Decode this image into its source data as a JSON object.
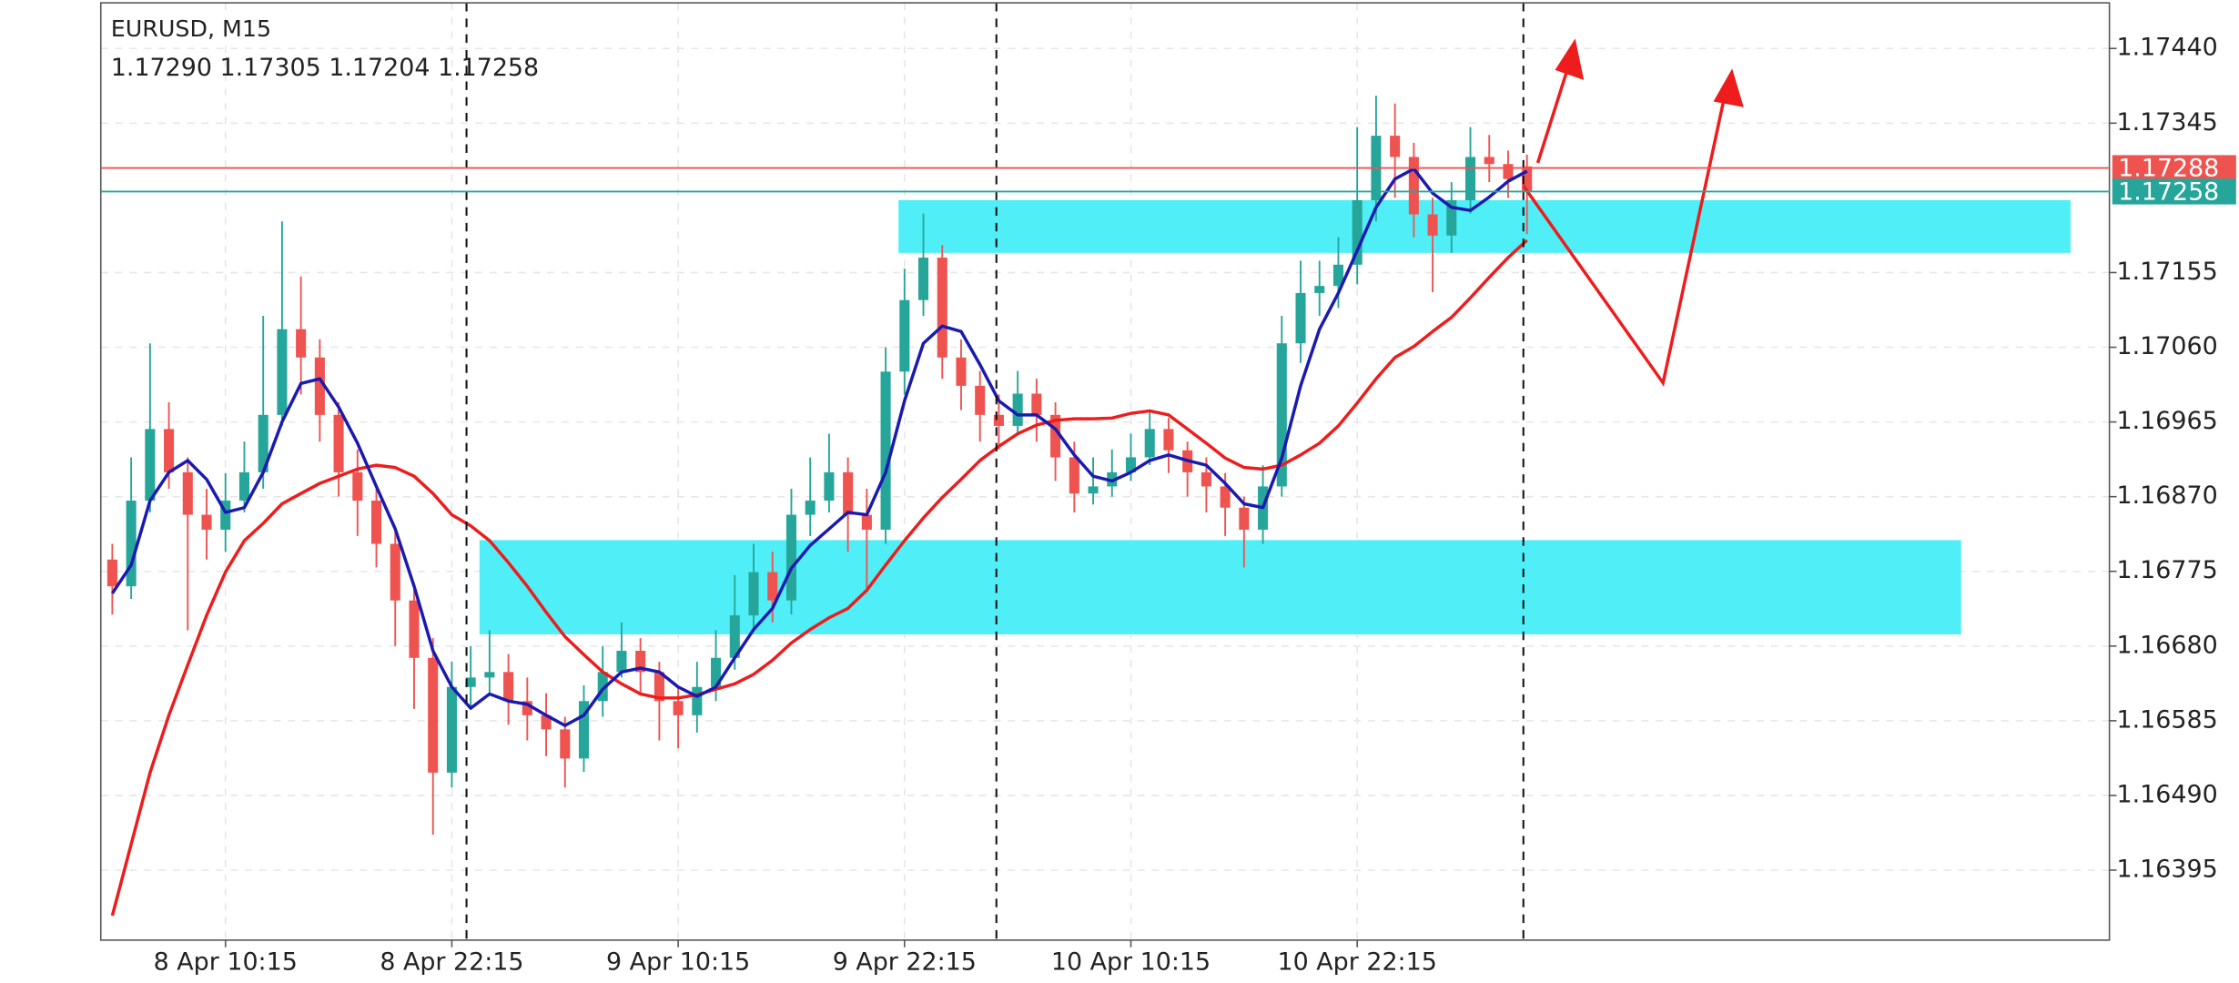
{
  "chart_data": {
    "type": "candlestick",
    "title": "EURUSD, M15",
    "subtitle": "1.17290 1.17305 1.17204 1.17258",
    "categories": [
      null,
      null,
      null,
      null,
      null,
      null,
      "8 Apr 10:15",
      null,
      null,
      null,
      null,
      null,
      null,
      null,
      null,
      null,
      null,
      null,
      "8 Apr 22:15",
      null,
      null,
      null,
      null,
      null,
      null,
      null,
      null,
      null,
      null,
      null,
      "9 Apr 10:15",
      null,
      null,
      null,
      null,
      null,
      null,
      null,
      null,
      null,
      null,
      null,
      "9 Apr 22:15",
      null,
      null,
      null,
      null,
      null,
      null,
      null,
      null,
      null,
      null,
      null,
      "10 Apr 10:15",
      null,
      null,
      null,
      null,
      null,
      null,
      null,
      null,
      null,
      null,
      null,
      "10 Apr 22:15",
      null,
      null,
      null,
      null,
      null,
      null,
      null,
      null,
      null
    ],
    "open": [
      1.1679,
      1.16756,
      1.16865,
      1.16956,
      1.16901,
      1.16847,
      1.16828,
      1.16865,
      1.16901,
      1.16974,
      1.17083,
      1.17047,
      1.16974,
      1.16901,
      1.16865,
      1.1681,
      1.16738,
      1.16665,
      1.16519,
      1.16628,
      1.1664,
      1.16647,
      1.1661,
      1.16592,
      1.16574,
      1.16537,
      1.1661,
      1.16647,
      1.16674,
      1.16647,
      1.1661,
      1.16592,
      1.16628,
      1.16665,
      1.16719,
      1.16774,
      1.16738,
      1.16847,
      1.16865,
      1.16901,
      1.16847,
      1.16828,
      1.17029,
      1.1712,
      1.17174,
      1.17047,
      1.17011,
      1.16974,
      1.1696,
      1.17001,
      1.16974,
      1.1692,
      1.16874,
      1.16883,
      1.16901,
      1.1692,
      1.16956,
      1.16929,
      1.16901,
      1.16883,
      1.16856,
      1.16828,
      1.16883,
      1.17065,
      1.17129,
      1.17138,
      1.17165,
      1.17247,
      1.17329,
      1.17302,
      1.17229,
      1.17202,
      1.17247,
      1.17302,
      1.17293,
      1.1729
    ],
    "high": [
      1.1681,
      1.1692,
      1.17065,
      1.1699,
      1.1692,
      1.1688,
      1.169,
      1.1694,
      1.171,
      1.1722,
      1.1715,
      1.1707,
      1.1699,
      1.1693,
      1.1688,
      1.1683,
      1.1676,
      1.1669,
      1.1666,
      1.1668,
      1.167,
      1.1667,
      1.1664,
      1.1662,
      1.1659,
      1.1663,
      1.1668,
      1.1671,
      1.1669,
      1.1666,
      1.1663,
      1.1666,
      1.167,
      1.1677,
      1.1681,
      1.168,
      1.1688,
      1.1692,
      1.1695,
      1.1692,
      1.1688,
      1.1706,
      1.1716,
      1.1723,
      1.1719,
      1.1707,
      1.1703,
      1.17,
      1.1703,
      1.1702,
      1.1699,
      1.1694,
      1.1692,
      1.1693,
      1.1695,
      1.1698,
      1.1697,
      1.1694,
      1.1692,
      1.169,
      1.1687,
      1.1691,
      1.171,
      1.1717,
      1.1717,
      1.172,
      1.1734,
      1.1738,
      1.1737,
      1.1732,
      1.1725,
      1.1727,
      1.1734,
      1.1733,
      1.1731,
      1.17305
    ],
    "low": [
      1.1672,
      1.1674,
      1.1685,
      1.1688,
      1.167,
      1.1679,
      1.168,
      1.1685,
      1.1688,
      1.1696,
      1.17,
      1.1694,
      1.1687,
      1.1682,
      1.1678,
      1.1668,
      1.166,
      1.1644,
      1.165,
      1.166,
      1.1662,
      1.1658,
      1.1656,
      1.1654,
      1.165,
      1.1652,
      1.1659,
      1.1664,
      1.1662,
      1.1656,
      1.1655,
      1.1657,
      1.1661,
      1.1665,
      1.167,
      1.1671,
      1.1672,
      1.1682,
      1.1685,
      1.168,
      1.1675,
      1.1681,
      1.17,
      1.171,
      1.1702,
      1.1698,
      1.1694,
      1.1693,
      1.1695,
      1.1694,
      1.1689,
      1.1685,
      1.1686,
      1.1687,
      1.1689,
      1.1691,
      1.169,
      1.1687,
      1.1685,
      1.1682,
      1.1678,
      1.1681,
      1.1687,
      1.1704,
      1.171,
      1.1711,
      1.1714,
      1.1722,
      1.1725,
      1.172,
      1.1713,
      1.1718,
      1.1723,
      1.1727,
      1.1725,
      1.17204
    ],
    "close": [
      1.16756,
      1.16865,
      1.16956,
      1.16901,
      1.16847,
      1.16828,
      1.16865,
      1.16901,
      1.16974,
      1.17083,
      1.17047,
      1.16974,
      1.16901,
      1.16865,
      1.1681,
      1.16738,
      1.16665,
      1.16519,
      1.16628,
      1.1664,
      1.16647,
      1.1661,
      1.16592,
      1.16574,
      1.16537,
      1.1661,
      1.16647,
      1.16674,
      1.16647,
      1.1661,
      1.16592,
      1.16628,
      1.16665,
      1.16719,
      1.16774,
      1.16738,
      1.16847,
      1.16865,
      1.16901,
      1.16847,
      1.16828,
      1.17029,
      1.1712,
      1.17174,
      1.17047,
      1.17011,
      1.16974,
      1.1696,
      1.17001,
      1.16974,
      1.1692,
      1.16874,
      1.16883,
      1.16901,
      1.1692,
      1.16956,
      1.16929,
      1.16901,
      1.16883,
      1.16856,
      1.16828,
      1.16883,
      1.17065,
      1.17129,
      1.17138,
      1.17165,
      1.17247,
      1.17329,
      1.17302,
      1.17229,
      1.17202,
      1.17247,
      1.17302,
      1.17293,
      1.17274,
      1.17258
    ],
    "up_color": "#26a69a",
    "down_color": "#ef5350",
    "series": [
      {
        "color": "#ee1c1c",
        "values": [
          1.16337,
          1.16428,
          1.16519,
          1.16592,
          1.16656,
          1.16719,
          1.16774,
          1.16814,
          1.16836,
          1.16861,
          1.16874,
          1.16887,
          1.16896,
          1.16905,
          1.1691,
          1.16907,
          1.16896,
          1.16874,
          1.16847,
          1.16833,
          1.16814,
          1.16786,
          1.16756,
          1.16723,
          1.16692,
          1.16669,
          1.16647,
          1.16632,
          1.16619,
          1.16614,
          1.16614,
          1.16618,
          1.16625,
          1.16632,
          1.16644,
          1.16662,
          1.16684,
          1.16701,
          1.16716,
          1.16728,
          1.16751,
          1.16783,
          1.16814,
          1.16843,
          1.16869,
          1.16892,
          1.16916,
          1.16934,
          1.1695,
          1.16961,
          1.16967,
          1.16969,
          1.16969,
          1.1697,
          1.16976,
          1.16979,
          1.16974,
          1.16956,
          1.16938,
          1.16919,
          1.16907,
          1.16905,
          1.1691,
          1.16923,
          1.16938,
          1.1696,
          1.16989,
          1.1702,
          1.17047,
          1.17061,
          1.1708,
          1.17098,
          1.17123,
          1.17149,
          1.17174,
          1.17196
        ]
      },
      {
        "color": "#1a1ab0",
        "values": [
          1.16747,
          1.16783,
          1.16865,
          1.16901,
          1.16916,
          1.16892,
          1.1685,
          1.16856,
          1.16901,
          1.16965,
          1.17014,
          1.1702,
          1.16984,
          1.16938,
          1.16883,
          1.16829,
          1.16756,
          1.16674,
          1.16628,
          1.16601,
          1.16619,
          1.1661,
          1.16606,
          1.16592,
          1.16579,
          1.16592,
          1.16625,
          1.16647,
          1.16652,
          1.16647,
          1.16628,
          1.16616,
          1.16628,
          1.16665,
          1.16701,
          1.16728,
          1.16779,
          1.16808,
          1.16829,
          1.1685,
          1.16847,
          1.16901,
          1.16992,
          1.17065,
          1.17087,
          1.1708,
          1.17038,
          1.16992,
          1.16974,
          1.16974,
          1.16956,
          1.16923,
          1.16896,
          1.1689,
          1.16901,
          1.16916,
          1.16923,
          1.16916,
          1.1691,
          1.16887,
          1.16861,
          1.16856,
          1.16919,
          1.17011,
          1.17083,
          1.17129,
          1.17183,
          1.17238,
          1.17274,
          1.17287,
          1.17256,
          1.17238,
          1.17234,
          1.17251,
          1.17271,
          1.17284
        ]
      }
    ],
    "price_lines": [
      {
        "value": 1.17288,
        "color": "#ef5350"
      },
      {
        "value": 1.17258,
        "color": "#26a69a"
      }
    ],
    "ylim": [
      1.16306,
      1.17498
    ],
    "yticks": [
      {
        "value": 1.1744,
        "label": "1.17440"
      },
      1.17345,
      1.17155,
      {
        "value": 1.1706,
        "label": "1.17060"
      },
      1.16965,
      {
        "value": 1.1687,
        "label": "1.16870"
      },
      1.16775,
      {
        "value": 1.1668,
        "label": "1.16680"
      },
      1.16585,
      {
        "value": 1.1649,
        "label": "1.16490"
      },
      1.16395
    ],
    "grid": true
  }
}
